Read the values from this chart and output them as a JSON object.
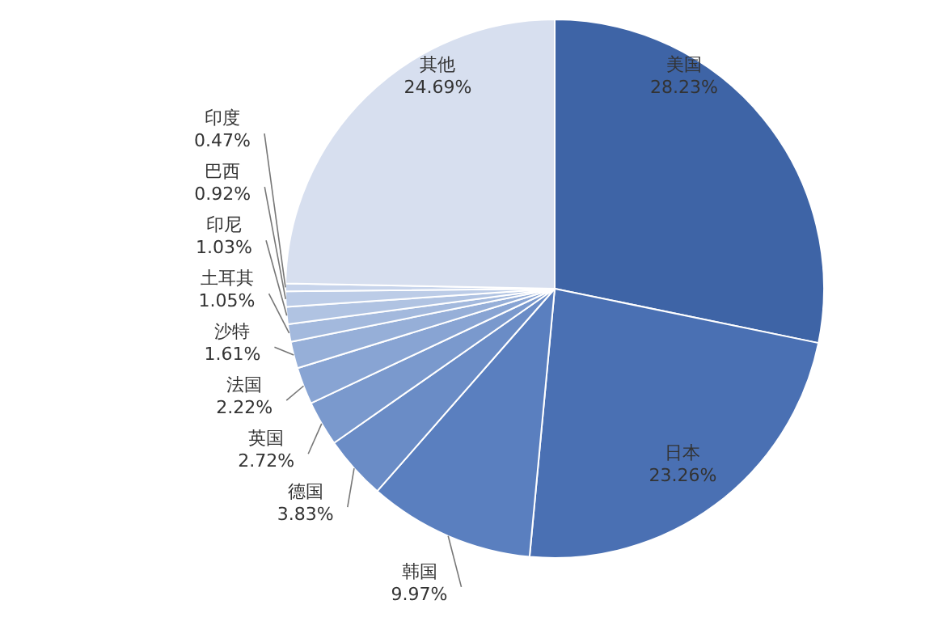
{
  "chart_data": {
    "type": "pie",
    "categories": [
      "美国",
      "日本",
      "韩国",
      "德国",
      "英国",
      "法国",
      "沙特",
      "土耳其",
      "印尼",
      "巴西",
      "印度",
      "其他"
    ],
    "values": [
      28.23,
      23.26,
      9.97,
      3.83,
      2.72,
      2.22,
      1.61,
      1.05,
      1.03,
      0.92,
      0.47,
      24.69
    ],
    "value_labels": [
      "28.23%",
      "23.26%",
      "9.97%",
      "3.83%",
      "2.72%",
      "2.22%",
      "1.61%",
      "1.05%",
      "1.03%",
      "0.92%",
      "0.47%",
      "24.69%"
    ],
    "colors": [
      "#3e64a6",
      "#4a70b3",
      "#5a7fbf",
      "#6a8cc6",
      "#7a99cd",
      "#88a4d3",
      "#96afd8",
      "#a3b9dd",
      "#b0c3e2",
      "#bccce7",
      "#c7d4eb",
      "#d7dfef"
    ],
    "legend": false
  }
}
